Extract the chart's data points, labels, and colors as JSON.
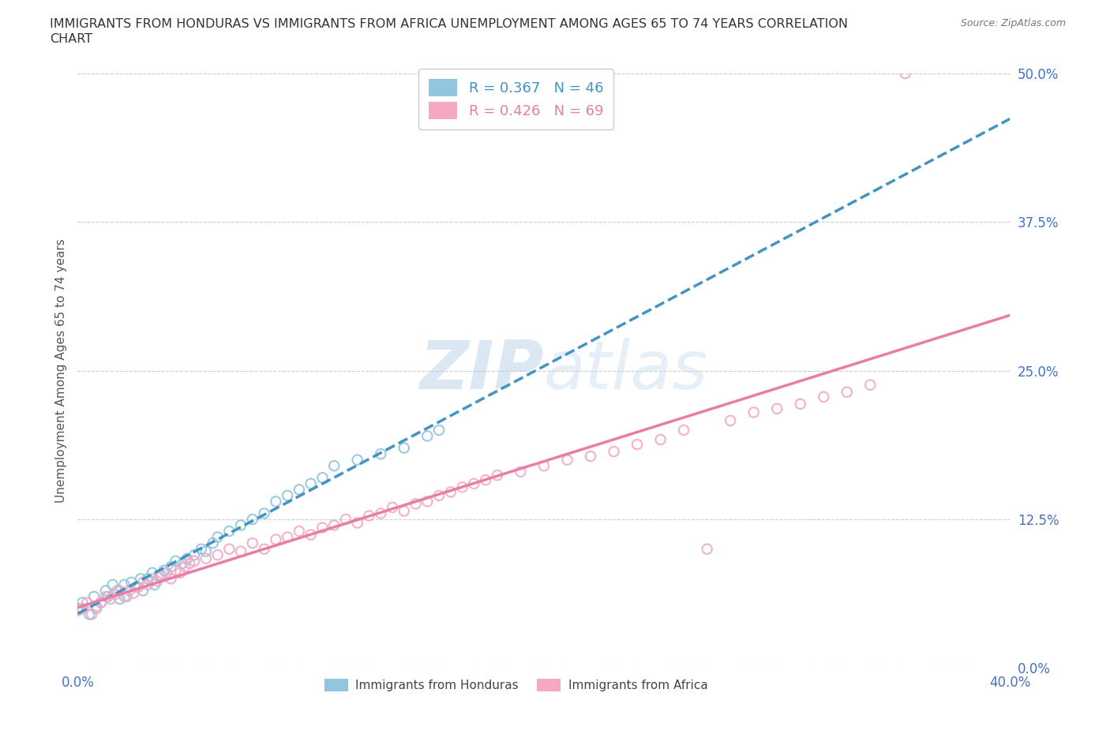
{
  "title_line1": "IMMIGRANTS FROM HONDURAS VS IMMIGRANTS FROM AFRICA UNEMPLOYMENT AMONG AGES 65 TO 74 YEARS CORRELATION",
  "title_line2": "CHART",
  "source": "Source: ZipAtlas.com",
  "ylabel": "Unemployment Among Ages 65 to 74 years",
  "xlim": [
    0.0,
    0.4
  ],
  "ylim": [
    0.0,
    0.5
  ],
  "xticks": [
    0.0,
    0.1,
    0.2,
    0.3,
    0.4
  ],
  "xtick_labels": [
    "0.0%",
    "",
    "",
    "",
    "40.0%"
  ],
  "ytick_labels": [
    "0.0%",
    "12.5%",
    "25.0%",
    "37.5%",
    "50.0%"
  ],
  "yticks": [
    0.0,
    0.125,
    0.25,
    0.375,
    0.5
  ],
  "legend_r1": "R = 0.367",
  "legend_n1": "N = 46",
  "legend_r2": "R = 0.426",
  "legend_n2": "N = 69",
  "legend_label1": "Immigrants from Honduras",
  "legend_label2": "Immigrants from Africa",
  "color1": "#92c5de",
  "color2": "#f4a9c0",
  "line_color1": "#4393c3",
  "line_color2": "#e87da8",
  "grid_color": "#cccccc",
  "title_color": "#333333",
  "axis_tick_color": "#4472c4",
  "background_color": "#ffffff",
  "watermark_color": "#d0dff0",
  "watermark_color2": "#c8e0f0"
}
